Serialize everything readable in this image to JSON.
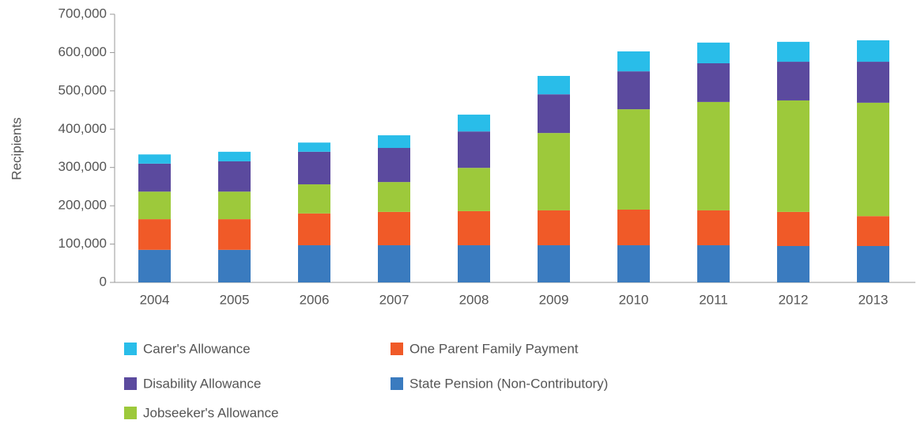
{
  "chart_data": {
    "type": "stacked_bar",
    "y_label": "Recipients",
    "categories": [
      "2004",
      "2005",
      "2006",
      "2007",
      "2008",
      "2009",
      "2010",
      "2011",
      "2012",
      "2013"
    ],
    "series": [
      {
        "name": "State Pension (Non-Contributory)",
        "color": "#3a7bbf",
        "values": [
          85000,
          85000,
          97000,
          97000,
          97000,
          97000,
          97000,
          97000,
          95000,
          95000
        ]
      },
      {
        "name": "One Parent Family Payment",
        "color": "#f05a28",
        "values": [
          80000,
          80000,
          83000,
          87000,
          89000,
          91000,
          93000,
          91000,
          89000,
          78000
        ]
      },
      {
        "name": "Jobseeker's Allowance",
        "color": "#9dc93b",
        "values": [
          72000,
          72000,
          76000,
          78000,
          113000,
          202000,
          262000,
          283000,
          291000,
          296000
        ]
      },
      {
        "name": "Disability Allowance",
        "color": "#5b4a9e",
        "values": [
          73000,
          79000,
          85000,
          89000,
          95000,
          101000,
          99000,
          101000,
          101000,
          107000
        ]
      },
      {
        "name": "Carer's Allowance",
        "color": "#29bde9",
        "values": [
          24000,
          25000,
          24000,
          33000,
          44000,
          48000,
          52000,
          54000,
          52000,
          56000
        ]
      }
    ],
    "ylim": [
      0,
      700000
    ],
    "yticks": [
      0,
      {
        "value": 100000,
        "label": "100,000"
      },
      {
        "value": 200000,
        "label": "200,000"
      },
      {
        "value": 300000,
        "label": "300,000"
      },
      {
        "value": 400000,
        "label": "400,000"
      },
      {
        "value": 500000,
        "label": "500,000"
      },
      {
        "value": 600000,
        "label": "600,000"
      },
      {
        "value": 700000,
        "label": "700,000"
      }
    ]
  }
}
